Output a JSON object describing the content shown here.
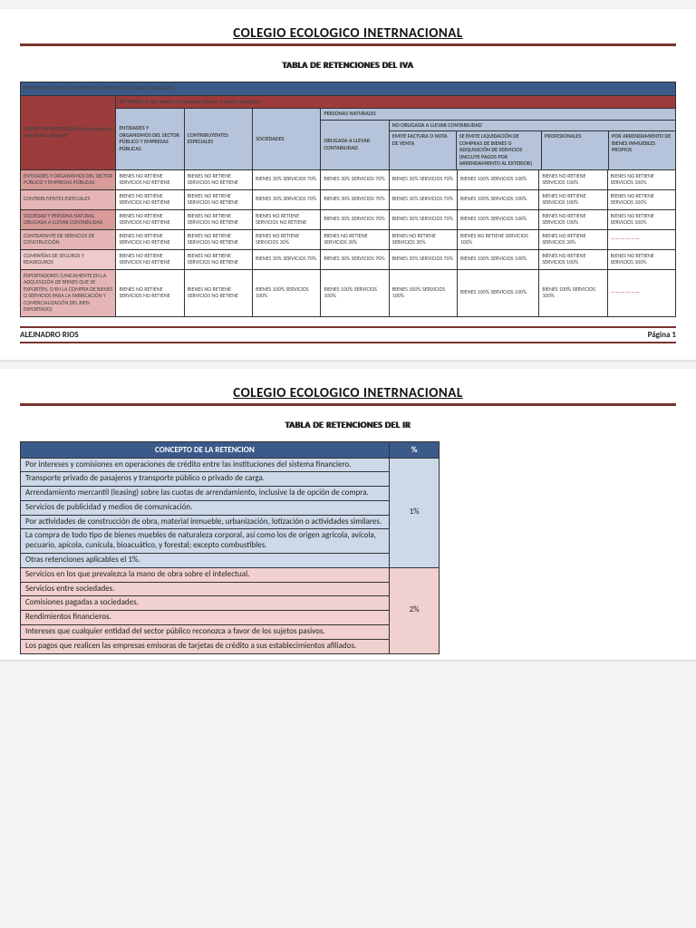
{
  "page1": {
    "title": "COLEGIO ECOLOGICO INETRNACIONAL",
    "subtitle": "TABLA DE RETENCIONES DEL IVA",
    "banner": "RETENCIONES EN LA FUENTE DEL IMPUESTO AL VALOR AGREGADO",
    "retenido": "RETENIDO: El que vende o transfiere bienes, o presta servicios.",
    "agent_label": "AGENTE DE RETENCIÓN                 (Comprador; el que realiza el pago)",
    "cols": {
      "c1": "ENTIDADES Y ORGANISMOS DEL SECTOR PÚBLICO Y EMPRESAS PÚBLICAS",
      "c2": "CONTRIBUYENTES ESPECIALES",
      "c3": "SOCIEDADES",
      "pn": "PERSONAS NATURALES",
      "c4": "OBLIGADA A LLEVAR CONTABILIDAD",
      "noob": "NO OBLIGADA A LLEVAR CONTABILIDAD",
      "c5": "EMITE FACTURA O NOTA DE VENTA",
      "c6": "SE EMITE LIQUIDACIÓN DE COMPRAS DE BIENES O ADQUISICIÓN DE SERVICIOS (INCLUYE PAGOS POR ARRENDAMIENTO AL EXTERIOR)",
      "c7": "PROFESIONALES",
      "c8": "POR ARRENDAMIENTO DE BIENES INMUEBLES PROPIOS"
    },
    "rows": [
      {
        "bg": "row-red1",
        "label": "ENTIDADES Y ORGANISMOS DEL SECTOR PÚBLICO Y EMPRESAS PÚBLICAS",
        "cells": [
          "BIENES NO RETIENE SERVICIOS NO RETIENE",
          "BIENES NO RETIENE SERVICIOS NO RETIENE",
          "BIENES 30% SERVICIOS 70%",
          "BIENES 30% SERVICIOS 70%",
          "BIENES 30% SERVICIOS 70%",
          "BIENES 100% SERVICIOS 100%",
          "BIENES NO RETIENE SERVICIOS 100%",
          "BIENES NO RETIENE SERVICIOS 100%"
        ]
      },
      {
        "bg": "row-red2",
        "label": "CONTRIBUYENTES ESPECIALES",
        "cells": [
          "BIENES NO RETIENE SERVICIOS NO RETIENE",
          "BIENES NO RETIENE SERVICIOS NO RETIENE",
          "BIENES 30% SERVICIOS 70%",
          "BIENES 30% SERVICIOS 70%",
          "BIENES 30% SERVICIOS 70%",
          "BIENES 100% SERVICIOS 100%",
          "BIENES NO RETIENE SERVICIOS 100%",
          "BIENES NO RETIENE SERVICIOS 100%"
        ]
      },
      {
        "bg": "row-red1",
        "label": "SOCIEDAD Y PERSONA NATURAL OBLIGADA A LLEVAR CONTABILIDAD",
        "cells": [
          "BIENES NO RETIENE SERVICIOS NO RETIENE",
          "BIENES NO RETIENE SERVICIOS NO RETIENE",
          "BIENES NO RETIENE SERVICIOS NO RETIENE",
          "BIENES 30% SERVICIOS 70%",
          "BIENES 30% SERVICIOS 70%",
          "BIENES 100% SERVICIOS 100%",
          "BIENES NO RETIENE SERVICIOS 100%",
          "BIENES NO RETIENE SERVICIOS 100%"
        ]
      },
      {
        "bg": "row-red2",
        "label": "CONTRATANTE DE SERVICIOS DE CONSTRUCCIÓN",
        "cells": [
          "BIENES NO RETIENE SERVICIOS NO RETIENE",
          "BIENES NO RETIENE SERVICIOS NO RETIENE",
          "BIENES NO RETIENE SERVICIOS 30%",
          "BIENES NO RETIENE SERVICIOS 30%",
          "BIENES NO RETIENE SERVICIOS 30%",
          "BIENES NO RETIENE SERVICIOS 100%",
          "BIENES NO RETIENE SERVICIOS 30%",
          "——————"
        ]
      },
      {
        "bg": "row-red3",
        "label": "COMPAÑÍAS DE SEGUROS Y REASEGUROS",
        "cells": [
          "BIENES NO RETIENE SERVICIOS NO RETIENE",
          "BIENES NO RETIENE SERVICIOS NO RETIENE",
          "BIENES 30% SERVICIOS 70%",
          "BIENES 30% SERVICIOS 70%",
          "BIENES 30% SERVICIOS 70%",
          "BIENES 100% SERVICIOS 100%",
          "BIENES NO RETIENE SERVICIOS 100%",
          "BIENES NO RETIENE SERVICIOS 100%"
        ]
      },
      {
        "bg": "row-red2",
        "label": "EXPORTADORES (UNICAMENTE EN LA ADQUISICIÓN DE BIENES QUE SE EXPORTEN, O EN LA COMPRA DE BIENES O SERVICIOS PARA LA FABRICACIÓN Y COMERCIALIZACIÓN DEL BIEN EXPORTADO)",
        "cells": [
          "BIENES NO RETIENE SERVICIOS NO RETIENE",
          "BIENES NO RETIENE SERVICIOS NO RETIENE",
          "BIENES 100% SERVICIOS 100%",
          "BIENES 100% SERVICIOS 100%",
          "BIENES 100% SERVICIOS 100%",
          "BIENES 100% SERVICIOS 100%",
          "BIENES 100% SERVICIOS 100%",
          "——————"
        ]
      }
    ],
    "footer_left": "ALEJNADRO RIOS",
    "footer_right": "Página 1"
  },
  "page2": {
    "title": "COLEGIO ECOLOGICO INETRNACIONAL",
    "subtitle": "TABLA DE RETENCIONES DEL IR",
    "th1": "CONCEPTO DE LA RETENCION",
    "th2": "%",
    "groups": [
      {
        "pct": "1%",
        "cls": "pct1",
        "rows": [
          "Por intereses y comisiones en operaciones de crédito entre las instituciones del sistema financiero.",
          "Transporte privado de pasajeros y transporte público o privado de carga.",
          "Arrendamiento mercantil (leasing) sobre las cuotas de arrendamiento, inclusive la de opción de compra.",
          "Servicios de publicidad y medios de comunicación.",
          "Por actividades de construcción de obra, material inmueble, urbanización, lotización o actividades similares.",
          "La compra de todo tipo de bienes muebles de naturaleza corporal, así como los de origen agrícola, avícola, pecuario, apícola, cunícula, bioacuático, y forestal; excepto combustibles.",
          "Otras retenciones aplicables el 1%."
        ]
      },
      {
        "pct": "2%",
        "cls": "pct2",
        "rows": [
          "Servicios en los que prevalezca la mano de obra sobre el intelectual.",
          "Servicios entre sociedades.",
          "Comisiones pagadas a sociedades.",
          "Rendimientos financieros.",
          "Intereses que cualquier entidad del sector público reconozca a favor de los sujetos pasivos.",
          "Los pagos que realicen las empresas emisoras de tarjetas de crédito a sus establecimientos afiliados."
        ]
      }
    ]
  },
  "colors": {
    "brown": "#77352e",
    "blue": "#3a5a8a",
    "red": "#9c3b3b",
    "lblue": "#b5c4da",
    "row_red1": "#d99a9a",
    "row_red2": "#e5b5b5",
    "row_red3": "#eecaca",
    "ir_blue": "#cdd9e9",
    "ir_pink": "#f1d0d0"
  }
}
